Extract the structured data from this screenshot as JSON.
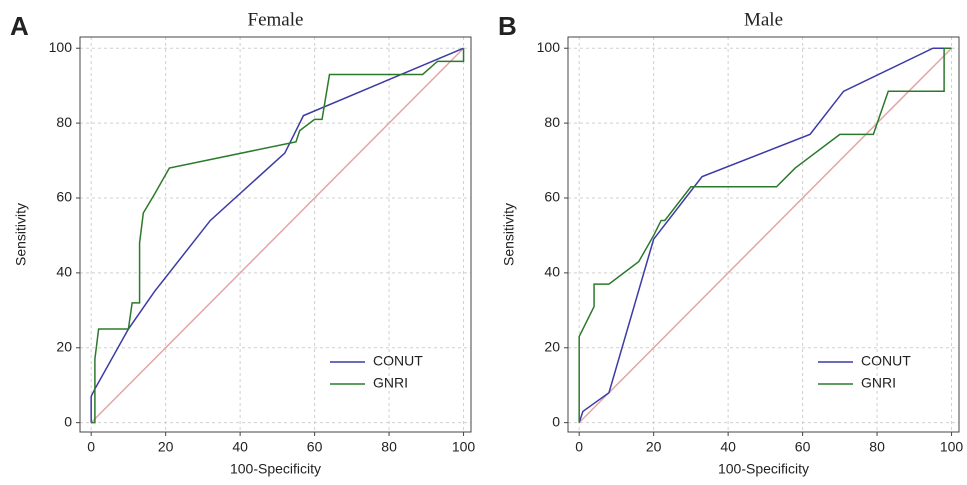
{
  "chart_data": [
    {
      "type": "line",
      "panel_label": "A",
      "title": "Female",
      "xlabel": "100-Specificity",
      "ylabel": "Sensitivity",
      "xlim": [
        -3,
        102
      ],
      "ylim": [
        -2.5,
        103
      ],
      "xticks": [
        0,
        20,
        40,
        60,
        80,
        100
      ],
      "yticks": [
        0,
        20,
        40,
        60,
        80,
        100
      ],
      "grid": true,
      "legend": "lower right",
      "reference_line": {
        "x": [
          0,
          100
        ],
        "values": [
          0,
          100
        ],
        "color": "#e3a6a6"
      },
      "series": [
        {
          "name": "CONUT",
          "color": "#3b3ba6",
          "x": [
            0,
            0,
            1,
            10,
            17,
            32,
            52,
            57,
            100
          ],
          "values": [
            0,
            7,
            9,
            25,
            35,
            54,
            72,
            82,
            100
          ]
        },
        {
          "name": "GNRI",
          "color": "#2b7a2b",
          "x": [
            0,
            1,
            1,
            2,
            10,
            11,
            13,
            13,
            14,
            17,
            21,
            55,
            56,
            60,
            62,
            64,
            89,
            93,
            100,
            100
          ],
          "values": [
            0,
            0,
            17,
            25,
            25,
            32,
            32,
            48,
            56,
            61,
            68,
            75,
            78,
            81,
            81,
            93,
            93,
            96.5,
            96.5,
            100
          ]
        }
      ]
    },
    {
      "type": "line",
      "panel_label": "B",
      "title": "Male",
      "xlabel": "100-Specificity",
      "ylabel": "Sensitivity",
      "xlim": [
        -3,
        102
      ],
      "ylim": [
        -2.5,
        103
      ],
      "xticks": [
        0,
        20,
        40,
        60,
        80,
        100
      ],
      "yticks": [
        0,
        20,
        40,
        60,
        80,
        100
      ],
      "grid": true,
      "legend": "lower right",
      "reference_line": {
        "x": [
          0,
          100
        ],
        "values": [
          0,
          100
        ],
        "color": "#e3a6a6"
      },
      "series": [
        {
          "name": "CONUT",
          "color": "#3b3ba6",
          "x": [
            0,
            1,
            8,
            20,
            33,
            62,
            71,
            95,
            100
          ],
          "values": [
            0,
            3,
            8,
            49,
            65.7,
            77,
            88.5,
            100,
            100
          ]
        },
        {
          "name": "GNRI",
          "color": "#2b7a2b",
          "x": [
            0,
            0,
            4,
            4,
            8,
            16,
            20,
            22,
            23,
            30,
            53,
            58,
            70,
            79,
            83,
            98,
            98,
            100
          ],
          "values": [
            0,
            23,
            31,
            37,
            37,
            43,
            50,
            54,
            54,
            63,
            63,
            68,
            77,
            77,
            88.5,
            88.5,
            100,
            100
          ]
        }
      ]
    }
  ]
}
